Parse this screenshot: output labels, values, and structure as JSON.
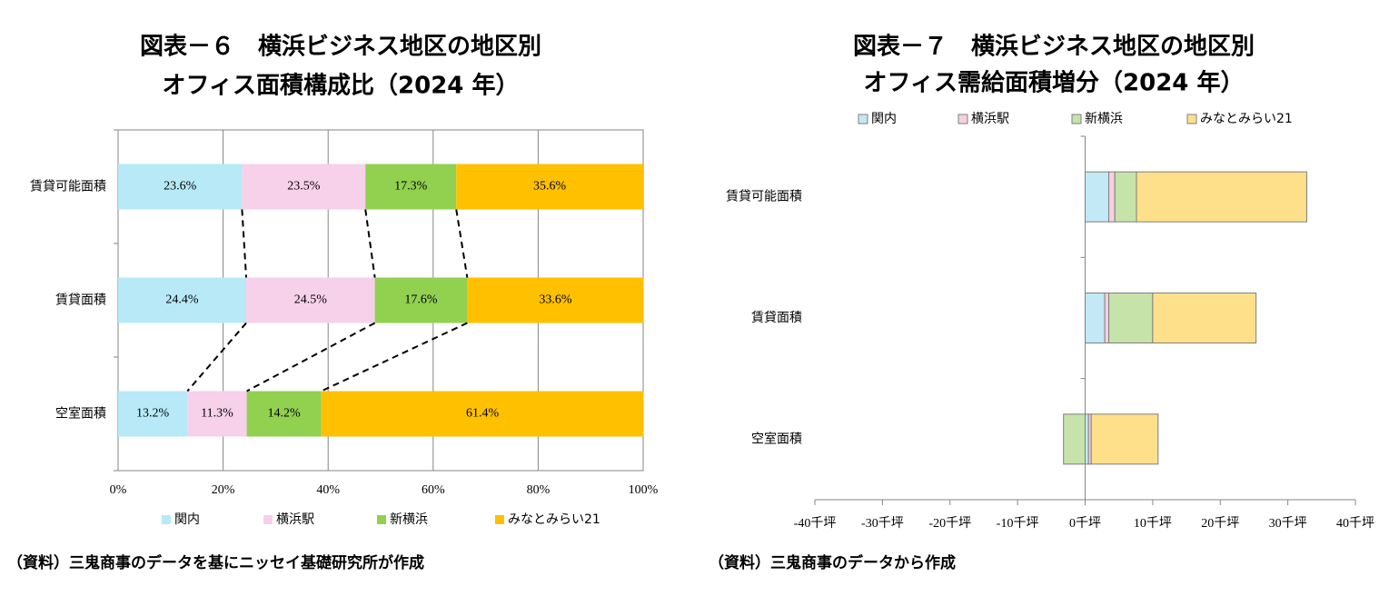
{
  "chart_data": [
    {
      "type": "bar",
      "orientation": "horizontal",
      "stacked": true,
      "title": [
        "図表－６　横浜ビジネス地区の地区別",
        "オフィス面積構成比（2024 年）"
      ],
      "categories": [
        "賃貸可能面積",
        "賃貸面積",
        "空室面積"
      ],
      "series": [
        {
          "name": "関内",
          "color": "#b7e9f7",
          "values": [
            23.6,
            24.4,
            13.2
          ],
          "value_labels": [
            "23.6%",
            "24.4%",
            "13.2%"
          ]
        },
        {
          "name": "横浜駅",
          "color": "#f7d0ea",
          "values": [
            23.5,
            24.5,
            11.3
          ],
          "value_labels": [
            "23.5%",
            "24.5%",
            "11.3%"
          ]
        },
        {
          "name": "新横浜",
          "color": "#92d050",
          "values": [
            17.3,
            17.6,
            14.2
          ],
          "value_labels": [
            "17.3%",
            "17.6%",
            "14.2%"
          ]
        },
        {
          "name": "みなとみらい21",
          "color": "#ffc000",
          "values": [
            35.6,
            33.6,
            61.4
          ],
          "value_labels": [
            "35.6%",
            "33.6%",
            "61.4%"
          ]
        }
      ],
      "xlim": [
        0,
        100
      ],
      "xticks": [
        {
          "value": 0,
          "label": "0%"
        },
        {
          "value": 20,
          "label": "20%"
        },
        {
          "value": 40,
          "label": "40%"
        },
        {
          "value": 60,
          "label": "60%"
        },
        {
          "value": 80,
          "label": "80%"
        },
        {
          "value": 100,
          "label": "100%"
        }
      ],
      "grid": true,
      "legend": "bottom",
      "source": "（資料）三鬼商事のデータを基にニッセイ基礎研究所が作成"
    },
    {
      "type": "bar",
      "orientation": "horizontal",
      "stacked": true,
      "title": [
        "図表－７　横浜ビジネス地区の地区別",
        "オフィス需給面積増分（2024 年）"
      ],
      "categories": [
        "賃貸可能面積",
        "賃貸面積",
        "空室面積"
      ],
      "series": [
        {
          "name": "関内",
          "color": "#c3e8f6",
          "values": [
            3.5,
            2.9,
            0.5
          ]
        },
        {
          "name": "横浜駅",
          "color": "#f8cfdf",
          "values": [
            0.9,
            0.6,
            0.4
          ]
        },
        {
          "name": "新横浜",
          "color": "#c6e3a9",
          "values": [
            3.2,
            6.5,
            -3.2
          ]
        },
        {
          "name": "みなとみらい21",
          "color": "#ffe08a",
          "values": [
            25.2,
            15.3,
            9.9
          ]
        }
      ],
      "xlim": [
        -40,
        40
      ],
      "xticks": [
        {
          "value": -40,
          "label": "-40千坪"
        },
        {
          "value": -30,
          "label": "-30千坪"
        },
        {
          "value": -20,
          "label": "-20千坪"
        },
        {
          "value": -10,
          "label": "-10千坪"
        },
        {
          "value": 0,
          "label": "0千坪"
        },
        {
          "value": 10,
          "label": "10千坪"
        },
        {
          "value": 20,
          "label": "20千坪"
        },
        {
          "value": 30,
          "label": "30千坪"
        },
        {
          "value": 40,
          "label": "40千坪"
        }
      ],
      "grid": false,
      "legend": "top",
      "source": "（資料）三鬼商事のデータから作成"
    }
  ]
}
